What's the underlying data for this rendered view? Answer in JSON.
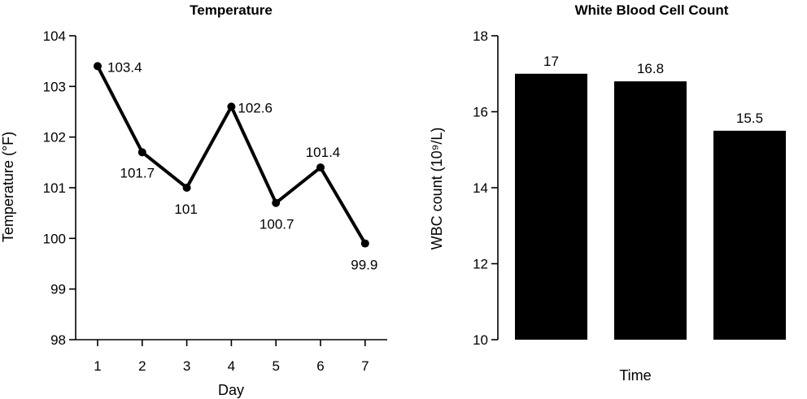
{
  "chart_data": [
    {
      "type": "line",
      "title": "Temperature",
      "xlabel": "Day",
      "ylabel": "Temperature (°F)",
      "x": [
        1,
        2,
        3,
        4,
        5,
        6,
        7
      ],
      "x_tick_labels": [
        "1",
        "2",
        "3",
        "4",
        "5",
        "6",
        "7"
      ],
      "values": [
        103.4,
        101.7,
        101,
        102.6,
        100.7,
        101.4,
        99.9
      ],
      "data_labels": [
        "103.4",
        "101.7",
        "101",
        "102.6",
        "100.7",
        "101.4",
        "99.9"
      ],
      "ylim": [
        98,
        104
      ],
      "y_ticks": [
        98,
        99,
        100,
        101,
        102,
        103,
        104
      ],
      "y_tick_labels": [
        "98",
        "99",
        "100",
        "101",
        "102",
        "103",
        "104"
      ],
      "grid": false,
      "color": "#000000"
    },
    {
      "type": "bar",
      "title": "White Blood Cell Count",
      "xlabel": "Time",
      "ylabel": "WBC count (10⁹/L)",
      "categories": [
        "",
        "",
        ""
      ],
      "values": [
        17,
        16.8,
        15.5
      ],
      "data_labels": [
        "17",
        "16.8",
        "15.5"
      ],
      "ylim": [
        10,
        18
      ],
      "y_ticks": [
        10,
        12,
        14,
        16,
        18
      ],
      "y_tick_labels": [
        "10",
        "12",
        "14",
        "16",
        "18"
      ],
      "grid": false,
      "color": "#000000"
    }
  ]
}
